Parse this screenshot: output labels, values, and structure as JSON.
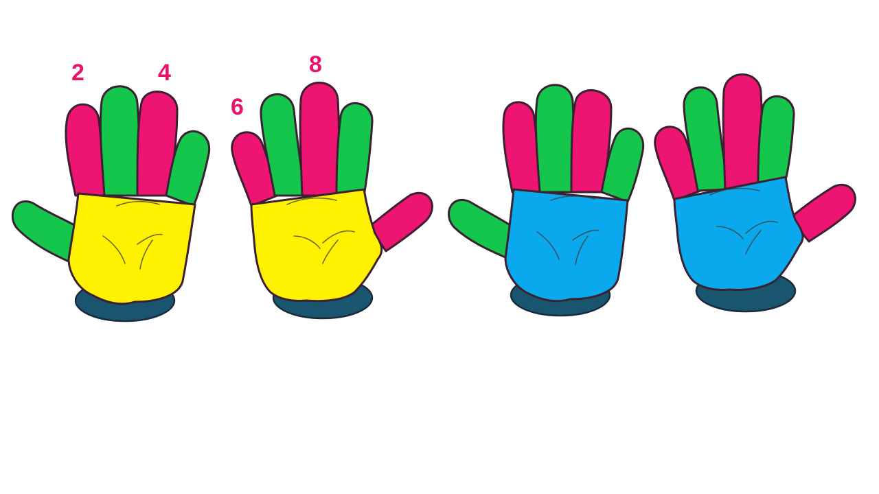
{
  "colors": {
    "pink": "#ee1472",
    "green": "#15c64c",
    "yellow": "#fff200",
    "blue": "#0aa9ee",
    "cuff": "#1a5570",
    "label": "#e8146c"
  },
  "labels": {
    "two": "2",
    "four": "4",
    "six": "6",
    "eight": "8"
  },
  "hands": [
    {
      "palm_color": "yellow",
      "finger_colors": [
        "green",
        "pink",
        "green",
        "pink",
        "green"
      ]
    },
    {
      "palm_color": "yellow",
      "finger_colors": [
        "pink",
        "pink",
        "green",
        "pink",
        "green"
      ]
    },
    {
      "palm_color": "blue",
      "finger_colors": [
        "green",
        "pink",
        "green",
        "pink",
        "green"
      ]
    },
    {
      "palm_color": "blue",
      "finger_colors": [
        "pink",
        "pink",
        "green",
        "pink",
        "green"
      ]
    }
  ]
}
